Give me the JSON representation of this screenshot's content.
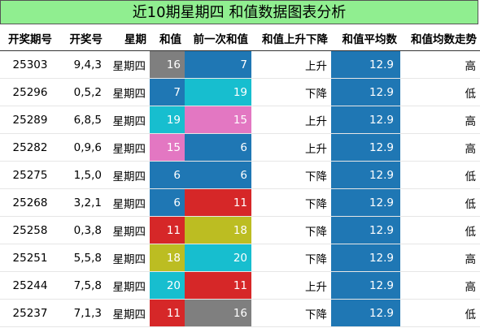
{
  "title": "近10期星期四 和值数据图表分析",
  "colors": {
    "header_bg": "#90ee90",
    "avg_bg": "#1f77b4"
  },
  "chart_data": {
    "type": "table",
    "columns": [
      "开奖期号",
      "开奖号",
      "星期",
      "和值",
      "前一次和值",
      "和值上升下降",
      "和值平均数",
      "和值均数走势"
    ],
    "rows": [
      {
        "issue": "25303",
        "numbers": "9,4,3",
        "weekday": "星期四",
        "sum": 16,
        "prev_sum": 7,
        "change": "上升",
        "avg": "12.9",
        "trend": "高",
        "sum_color": "#7f7f7f",
        "prev_color": "#1f77b4"
      },
      {
        "issue": "25296",
        "numbers": "0,5,2",
        "weekday": "星期四",
        "sum": 7,
        "prev_sum": 19,
        "change": "下降",
        "avg": "12.9",
        "trend": "低",
        "sum_color": "#1f77b4",
        "prev_color": "#17becf"
      },
      {
        "issue": "25289",
        "numbers": "6,8,5",
        "weekday": "星期四",
        "sum": 19,
        "prev_sum": 15,
        "change": "上升",
        "avg": "12.9",
        "trend": "高",
        "sum_color": "#17becf",
        "prev_color": "#e377c2"
      },
      {
        "issue": "25282",
        "numbers": "0,9,6",
        "weekday": "星期四",
        "sum": 15,
        "prev_sum": 6,
        "change": "上升",
        "avg": "12.9",
        "trend": "高",
        "sum_color": "#e377c2",
        "prev_color": "#1f77b4"
      },
      {
        "issue": "25275",
        "numbers": "1,5,0",
        "weekday": "星期四",
        "sum": 6,
        "prev_sum": 6,
        "change": "下降",
        "avg": "12.9",
        "trend": "低",
        "sum_color": "#1f77b4",
        "prev_color": "#1f77b4"
      },
      {
        "issue": "25268",
        "numbers": "3,2,1",
        "weekday": "星期四",
        "sum": 6,
        "prev_sum": 11,
        "change": "下降",
        "avg": "12.9",
        "trend": "低",
        "sum_color": "#1f77b4",
        "prev_color": "#d62728"
      },
      {
        "issue": "25258",
        "numbers": "0,3,8",
        "weekday": "星期四",
        "sum": 11,
        "prev_sum": 18,
        "change": "下降",
        "avg": "12.9",
        "trend": "低",
        "sum_color": "#d62728",
        "prev_color": "#bcbd22"
      },
      {
        "issue": "25251",
        "numbers": "5,5,8",
        "weekday": "星期四",
        "sum": 18,
        "prev_sum": 20,
        "change": "下降",
        "avg": "12.9",
        "trend": "高",
        "sum_color": "#bcbd22",
        "prev_color": "#17becf"
      },
      {
        "issue": "25244",
        "numbers": "7,5,8",
        "weekday": "星期四",
        "sum": 20,
        "prev_sum": 11,
        "change": "上升",
        "avg": "12.9",
        "trend": "高",
        "sum_color": "#17becf",
        "prev_color": "#d62728"
      },
      {
        "issue": "25237",
        "numbers": "7,1,3",
        "weekday": "星期四",
        "sum": 11,
        "prev_sum": 16,
        "change": "下降",
        "avg": "12.9",
        "trend": "低",
        "sum_color": "#d62728",
        "prev_color": "#7f7f7f"
      }
    ]
  }
}
